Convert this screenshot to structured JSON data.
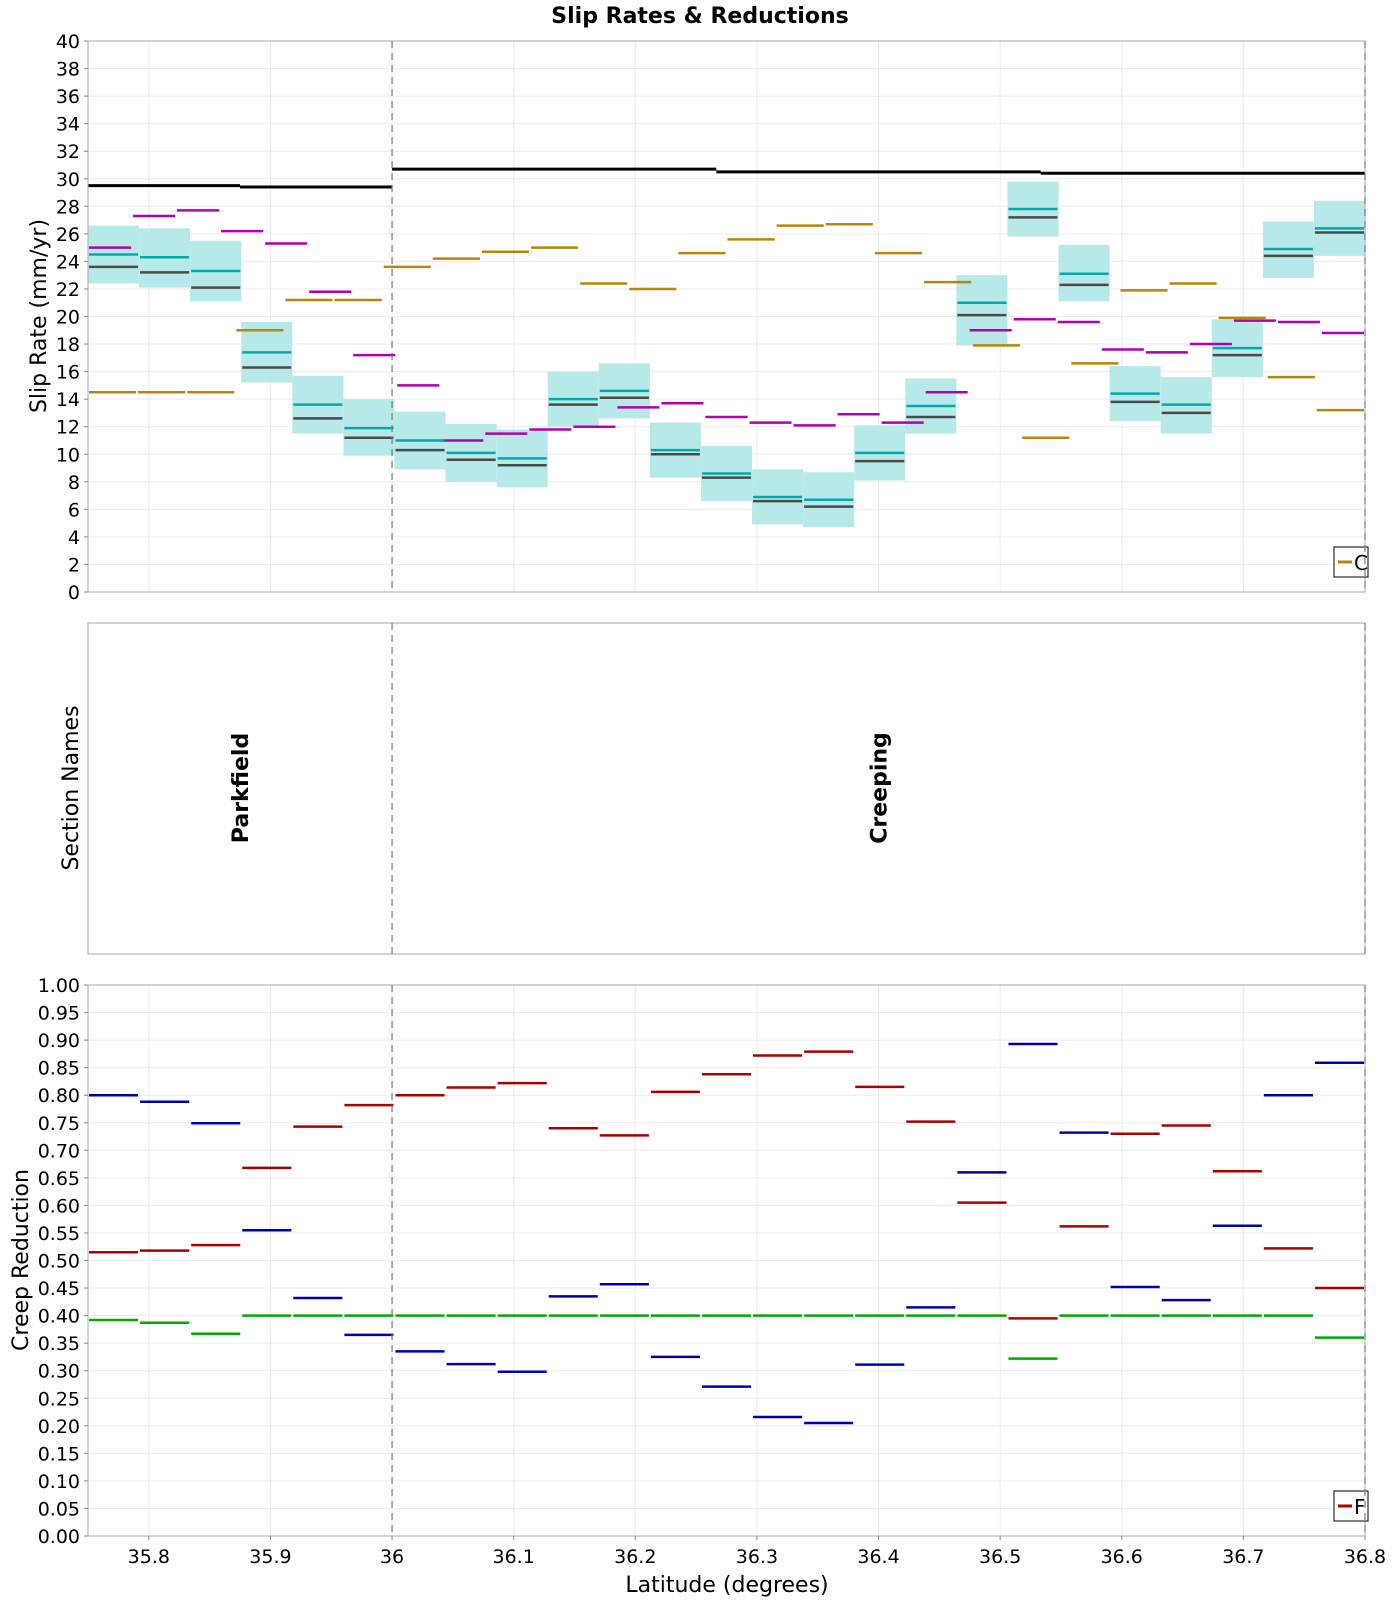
{
  "chart_data": {
    "type": "line",
    "title": "Slip Rates & Reductions",
    "xlabel": "Latitude (degrees)",
    "xlim": [
      35.75,
      36.8
    ],
    "x_ticks": [
      "35.8",
      "35.9",
      "36",
      "36.1",
      "36.2",
      "36.3",
      "36.4",
      "36.5",
      "36.6",
      "36.7",
      "36.8"
    ],
    "section_boundaries": [
      36.0,
      36.8
    ],
    "grid": true,
    "sections": [
      {
        "x0": 35.75,
        "x1": 36.0,
        "lines": [
          29.5,
          29.4
        ]
      },
      {
        "x0": 36.0,
        "x1": 36.8,
        "lines": [
          30.7,
          30.5,
          30.4
        ]
      }
    ],
    "bin_edges": [
      35.75,
      35.81,
      35.85,
      35.89,
      35.91,
      35.94,
      35.96,
      36.0,
      36.04,
      36.08,
      36.12,
      36.16,
      36.2,
      36.24,
      36.28,
      36.32,
      36.36,
      36.4,
      36.44,
      36.48,
      36.52,
      36.56,
      36.6,
      36.64,
      36.67,
      36.71,
      36.74,
      36.8
    ],
    "top": {
      "ylabel": "Slip Rate (mm/yr)",
      "ylim": [
        0,
        40
      ],
      "y_ticks": [
        "0",
        "2",
        "4",
        "6",
        "8",
        "10",
        "12",
        "14",
        "16",
        "18",
        "20",
        "22",
        "24",
        "26",
        "28",
        "30",
        "32",
        "34",
        "36",
        "38",
        "40"
      ],
      "legend_label": "C",
      "legend_placement": "bottom-right",
      "band_color": "#b8e9e9",
      "series": [
        {
          "key": "gold",
          "color": "#b8860b",
          "values": [
            14.5,
            14.5,
            14.5,
            19.0,
            21.2,
            21.2,
            23.6,
            24.2,
            24.7,
            25.0,
            22.4,
            22.0,
            24.6,
            25.6,
            26.6,
            26.7,
            24.6,
            22.5,
            17.9,
            11.2,
            16.6,
            21.9,
            22.4,
            19.9,
            15.6,
            13.2
          ]
        },
        {
          "key": "magenta",
          "color": "#b000b0",
          "values": [
            25.0,
            27.3,
            27.7,
            26.2,
            25.3,
            21.8,
            17.2,
            15.0,
            11.0,
            11.5,
            11.8,
            12.0,
            13.4,
            13.7,
            12.7,
            12.3,
            12.1,
            12.9,
            12.3,
            14.5,
            19.0,
            19.8,
            19.6,
            17.6,
            17.4,
            18.0,
            19.7,
            19.6,
            18.8
          ]
        },
        {
          "key": "teal",
          "color": "#00aaaa",
          "values": [
            24.5,
            24.3,
            23.3,
            17.4,
            13.6,
            11.9,
            11.0,
            10.1,
            9.7,
            14.0,
            14.6,
            10.3,
            8.6,
            6.9,
            6.7,
            10.1,
            13.5,
            21.0,
            27.8,
            23.1,
            14.4,
            13.6,
            17.7,
            24.9,
            26.4
          ]
        },
        {
          "key": "gray",
          "color": "#4a4a4a",
          "values": [
            23.6,
            23.2,
            22.1,
            16.3,
            12.6,
            11.2,
            10.3,
            9.6,
            9.2,
            13.6,
            14.1,
            10.0,
            8.3,
            6.6,
            6.2,
            9.5,
            12.7,
            20.1,
            27.2,
            22.3,
            13.8,
            13.0,
            17.2,
            24.4,
            26.1
          ]
        },
        {
          "key": "band_low",
          "values": [
            22.4,
            22.1,
            21.1,
            15.2,
            11.5,
            9.9,
            8.9,
            8.0,
            7.6,
            12.0,
            12.6,
            8.3,
            6.6,
            4.9,
            4.7,
            8.1,
            11.5,
            17.9,
            25.8,
            21.1,
            12.4,
            11.5,
            15.6,
            22.8,
            24.4
          ]
        },
        {
          "key": "band_high",
          "values": [
            26.6,
            26.4,
            25.5,
            19.6,
            15.7,
            14.0,
            13.1,
            12.2,
            11.8,
            16.0,
            16.6,
            12.3,
            10.6,
            8.9,
            8.7,
            12.1,
            15.5,
            23.0,
            29.8,
            25.2,
            16.4,
            15.6,
            19.8,
            26.9,
            28.4
          ]
        }
      ]
    },
    "middle": {
      "ylabel": "Section Names",
      "sections": [
        {
          "name": "Parkfield",
          "x": 35.875
        },
        {
          "name": "Creeping",
          "x": 36.4
        }
      ]
    },
    "bottom": {
      "ylabel": "Creep Reduction",
      "ylim": [
        0,
        1
      ],
      "y_ticks": [
        "0.00",
        "0.05",
        "0.10",
        "0.15",
        "0.20",
        "0.25",
        "0.30",
        "0.35",
        "0.40",
        "0.45",
        "0.50",
        "0.55",
        "0.60",
        "0.65",
        "0.70",
        "0.75",
        "0.80",
        "0.85",
        "0.90",
        "0.95",
        "1.00"
      ],
      "legend_label": "F",
      "legend_placement": "bottom-right",
      "series": [
        {
          "key": "red",
          "color": "#aa0000",
          "values": [
            0.515,
            0.518,
            0.528,
            0.668,
            0.743,
            0.782,
            0.8,
            0.814,
            0.822,
            0.74,
            0.727,
            0.806,
            0.838,
            0.872,
            0.879,
            0.815,
            0.752,
            0.605,
            0.395,
            0.562,
            0.73,
            0.745,
            0.662,
            0.522,
            0.45
          ]
        },
        {
          "key": "blue",
          "color": "#0000aa",
          "values": [
            0.8,
            0.788,
            0.749,
            0.555,
            0.432,
            0.365,
            0.335,
            0.312,
            0.298,
            0.435,
            0.457,
            0.325,
            0.271,
            0.216,
            0.205,
            0.311,
            0.415,
            0.66,
            0.893,
            0.732,
            0.452,
            0.428,
            0.563,
            0.8,
            0.859
          ]
        },
        {
          "key": "green",
          "color": "#00aa00",
          "values": [
            0.392,
            0.387,
            0.367,
            0.4,
            0.4,
            0.4,
            0.4,
            0.4,
            0.4,
            0.4,
            0.4,
            0.4,
            0.4,
            0.4,
            0.4,
            0.4,
            0.4,
            0.4,
            0.322,
            0.4,
            0.4,
            0.4,
            0.4,
            0.4,
            0.36
          ]
        }
      ]
    }
  }
}
